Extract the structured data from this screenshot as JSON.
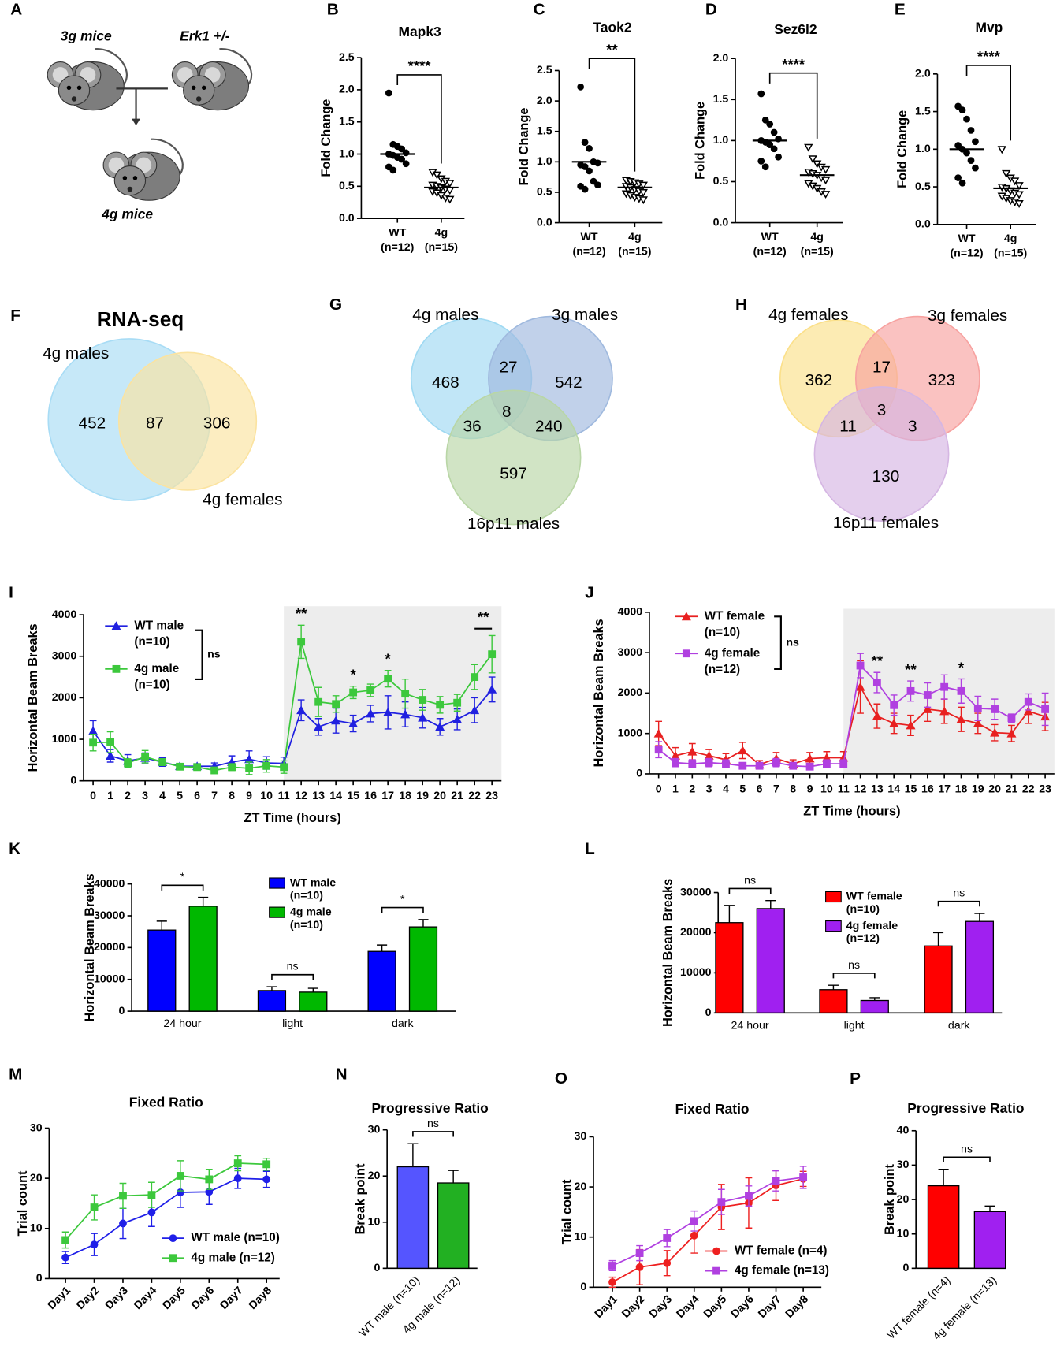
{
  "diagram": {
    "panel": "A",
    "labels": [
      "3g mice",
      "Erk1 +/-",
      "4g mice"
    ]
  },
  "chart_data": [
    {
      "panel": "B",
      "type": "dot_plot",
      "title": "Mapk3",
      "ylabel": "Fold Change",
      "categories": [
        "WT",
        "4g"
      ],
      "category_notes": [
        "(n=12)",
        "(n=15)"
      ],
      "markers": [
        "circle",
        "triangle-down-open"
      ],
      "color": "#000000",
      "points": [
        [
          1.95,
          1.15,
          1.12,
          1.08,
          1.02,
          1.0,
          0.98,
          0.95,
          0.92,
          0.85,
          0.8,
          0.75
        ],
        [
          0.72,
          0.68,
          0.62,
          0.58,
          0.55,
          0.52,
          0.5,
          0.48,
          0.46,
          0.44,
          0.42,
          0.4,
          0.36,
          0.32,
          0.3
        ]
      ],
      "means": [
        1.0,
        0.48
      ],
      "significance": "****",
      "ylim": [
        0,
        2.5
      ],
      "yticks": [
        {
          "value": 0,
          "label": "0.0"
        },
        0.5,
        {
          "value": 1,
          "label": "1.0"
        },
        1.5,
        {
          "value": 2,
          "label": "2.0"
        },
        2.5
      ]
    },
    {
      "panel": "C",
      "type": "dot_plot",
      "title": "Taok2",
      "ylabel": "Fold Change",
      "categories": [
        "WT",
        "4g"
      ],
      "category_notes": [
        "(n=12)",
        "(n=15)"
      ],
      "markers": [
        "circle",
        "triangle-down-open"
      ],
      "color": "#000000",
      "points": [
        [
          2.23,
          1.32,
          1.22,
          1.0,
          0.98,
          0.95,
          0.92,
          0.85,
          0.68,
          0.62,
          0.6,
          0.55
        ],
        [
          0.7,
          0.68,
          0.66,
          0.64,
          0.62,
          0.6,
          0.58,
          0.55,
          0.52,
          0.5,
          0.48,
          0.45,
          0.42,
          0.4,
          0.38
        ]
      ],
      "means": [
        1.0,
        0.58
      ],
      "significance": "**",
      "ylim": [
        0,
        2.5
      ],
      "yticks": [
        {
          "value": 0,
          "label": "0.0"
        },
        0.5,
        {
          "value": 1,
          "label": "1.0"
        },
        1.5,
        {
          "value": 2,
          "label": "2.0"
        },
        2.5
      ]
    },
    {
      "panel": "D",
      "type": "dot_plot",
      "title": "Sez6l2",
      "ylabel": "Fold Change",
      "categories": [
        "WT",
        "4g"
      ],
      "category_notes": [
        "(n=12)",
        "(n=15)"
      ],
      "markers": [
        "circle",
        "triangle-down-open"
      ],
      "color": "#000000",
      "points": [
        [
          1.57,
          1.25,
          1.2,
          1.1,
          1.02,
          1.0,
          0.98,
          0.95,
          0.9,
          0.8,
          0.75,
          0.68
        ],
        [
          0.92,
          0.78,
          0.72,
          0.68,
          0.65,
          0.62,
          0.6,
          0.58,
          0.55,
          0.52,
          0.48,
          0.45,
          0.42,
          0.38,
          0.35
        ]
      ],
      "means": [
        1.0,
        0.58
      ],
      "significance": "****",
      "ylim": [
        0,
        2.0
      ],
      "yticks": [
        {
          "value": 0,
          "label": "0.0"
        },
        0.5,
        {
          "value": 1,
          "label": "1.0"
        },
        1.5,
        {
          "value": 2,
          "label": "2.0"
        }
      ]
    },
    {
      "panel": "E",
      "type": "dot_plot",
      "title": "Mvp",
      "ylabel": "Fold Change",
      "categories": [
        "WT",
        "4g"
      ],
      "category_notes": [
        "(n=12)",
        "(n=15)"
      ],
      "markers": [
        "circle",
        "triangle-down-open"
      ],
      "color": "#000000",
      "points": [
        [
          1.57,
          1.52,
          1.4,
          1.25,
          1.1,
          1.05,
          1.0,
          0.95,
          0.85,
          0.75,
          0.62,
          0.55
        ],
        [
          1.0,
          0.68,
          0.62,
          0.58,
          0.52,
          0.5,
          0.48,
          0.45,
          0.42,
          0.4,
          0.38,
          0.35,
          0.32,
          0.3,
          0.28
        ]
      ],
      "means": [
        1.0,
        0.48
      ],
      "significance": "****",
      "ylim": [
        0,
        2.0
      ],
      "yticks": [
        {
          "value": 0,
          "label": "0.0"
        },
        0.5,
        {
          "value": 1,
          "label": "1.0"
        },
        1.5,
        {
          "value": 2,
          "label": "2.0"
        }
      ]
    },
    {
      "panel": "F",
      "type": "venn",
      "title": "RNA-seq",
      "sets": [
        "4g males",
        "4g females"
      ],
      "colors": [
        "#a8dcf5",
        "#fbe3a0"
      ],
      "values": [
        452,
        306,
        87
      ]
    },
    {
      "panel": "G",
      "type": "venn",
      "sets": [
        "4g males",
        "3g males",
        "16p11 males"
      ],
      "colors": [
        "#9fd9f2",
        "#9fb9de",
        "#b9d6a6"
      ],
      "values": [
        468,
        542,
        597,
        27,
        36,
        240,
        8
      ]
    },
    {
      "panel": "H",
      "type": "venn",
      "sets": [
        "4g females",
        "3g females",
        "16p11 females"
      ],
      "colors": [
        "#fbe08a",
        "#f7a2a0",
        "#d5b6e3"
      ],
      "values": [
        362,
        323,
        130,
        17,
        11,
        3,
        3
      ]
    },
    {
      "panel": "I",
      "type": "line",
      "ylabel": "Horizontal Beam Breaks",
      "xlabel": "ZT Time (hours)",
      "x": [
        0,
        1,
        2,
        3,
        4,
        5,
        6,
        7,
        8,
        9,
        10,
        11,
        12,
        13,
        14,
        15,
        16,
        17,
        18,
        19,
        20,
        21,
        22,
        23
      ],
      "xticks": [
        0,
        1,
        2,
        3,
        4,
        5,
        6,
        7,
        8,
        9,
        10,
        11,
        12,
        13,
        14,
        15,
        16,
        17,
        18,
        19,
        20,
        21,
        22,
        23
      ],
      "xlim": [
        -0.55,
        23.55
      ],
      "ylim": [
        0,
        4000
      ],
      "yticks": [
        0,
        1000,
        2000,
        3000,
        4000
      ],
      "dark_phase": [
        11,
        23.55
      ],
      "series": [
        {
          "name": "WT male",
          "note": "(n=10)",
          "color": "#2020e0",
          "marker": "triangle",
          "values": [
            1200,
            600,
            480,
            550,
            450,
            350,
            350,
            350,
            450,
            520,
            430,
            420,
            1700,
            1300,
            1450,
            1380,
            1620,
            1650,
            1600,
            1520,
            1300,
            1480,
            1700,
            2200
          ],
          "errors": [
            250,
            150,
            150,
            120,
            100,
            60,
            60,
            80,
            150,
            200,
            150,
            150,
            250,
            200,
            300,
            200,
            200,
            400,
            300,
            250,
            200,
            250,
            300,
            300
          ]
        },
        {
          "name": "4g male",
          "note": "(n=10)",
          "color": "#3cc83c",
          "marker": "square",
          "values": [
            920,
            930,
            430,
            580,
            450,
            340,
            330,
            250,
            330,
            300,
            360,
            330,
            3350,
            1900,
            1850,
            2130,
            2180,
            2460,
            2100,
            1950,
            1830,
            1880,
            2500,
            3050
          ],
          "errors": [
            200,
            250,
            100,
            150,
            80,
            50,
            50,
            50,
            80,
            150,
            150,
            150,
            400,
            350,
            200,
            150,
            150,
            200,
            350,
            250,
            200,
            200,
            300,
            450
          ]
        }
      ],
      "group_test": "ns",
      "annotations": [
        {
          "text": "**",
          "x": 12
        },
        {
          "text": "*",
          "x": 15
        },
        {
          "text": "*",
          "x": 17
        },
        {
          "text": "**",
          "x_range": [
            22,
            23
          ]
        }
      ]
    },
    {
      "panel": "J",
      "type": "line",
      "ylabel": "Horizontal Beam Breaks",
      "xlabel": "ZT Time (hours)",
      "x": [
        0,
        1,
        2,
        3,
        4,
        5,
        6,
        7,
        8,
        9,
        10,
        11,
        12,
        13,
        14,
        15,
        16,
        17,
        18,
        19,
        20,
        21,
        22,
        23
      ],
      "xticks": [
        0,
        1,
        2,
        3,
        4,
        5,
        6,
        7,
        8,
        9,
        10,
        11,
        12,
        13,
        14,
        15,
        16,
        17,
        18,
        19,
        20,
        21,
        22,
        23
      ],
      "xlim": [
        -0.55,
        23.55
      ],
      "ylim": [
        0,
        4000
      ],
      "yticks": [
        0,
        1000,
        2000,
        3000,
        4000
      ],
      "dark_phase": [
        11,
        23.55
      ],
      "series": [
        {
          "name": "WT female",
          "note": "(n=10)",
          "color": "#e82020",
          "marker": "triangle",
          "values": [
            1000,
            450,
            550,
            450,
            350,
            580,
            230,
            380,
            250,
            380,
            400,
            400,
            2150,
            1430,
            1250,
            1200,
            1600,
            1550,
            1350,
            1250,
            1020,
            1000,
            1550,
            1420
          ],
          "errors": [
            300,
            200,
            200,
            150,
            150,
            200,
            100,
            150,
            100,
            150,
            150,
            150,
            650,
            300,
            250,
            250,
            300,
            300,
            300,
            250,
            200,
            200,
            300,
            350
          ]
        },
        {
          "name": "4g female",
          "note": "(n=12)",
          "color": "#b040e0",
          "marker": "square",
          "values": [
            600,
            280,
            250,
            280,
            250,
            200,
            200,
            280,
            200,
            180,
            250,
            250,
            2680,
            2260,
            1700,
            2050,
            1950,
            2150,
            2050,
            1620,
            1600,
            1380,
            1780,
            1600
          ],
          "errors": [
            200,
            100,
            100,
            100,
            100,
            80,
            80,
            100,
            80,
            80,
            100,
            100,
            300,
            250,
            250,
            250,
            300,
            300,
            300,
            300,
            250,
            100,
            200,
            400
          ]
        }
      ],
      "group_test": "ns",
      "annotations": [
        {
          "text": "**",
          "x": 13
        },
        {
          "text": "**",
          "x": 15
        },
        {
          "text": "*",
          "x": 18
        }
      ]
    },
    {
      "panel": "K",
      "type": "bar",
      "ylabel": "Horizontal Beam Breaks",
      "categories": [
        "24 hour",
        "light",
        "dark"
      ],
      "ylim": [
        0,
        40000
      ],
      "yticks": [
        0,
        10000,
        20000,
        30000,
        40000
      ],
      "series": [
        {
          "name": "WT male",
          "note": "(n=10)",
          "color": "#0000ff",
          "values": [
            25500,
            6500,
            18800
          ],
          "errors": [
            2800,
            1200,
            2000
          ]
        },
        {
          "name": "4g male",
          "note": "(n=10)",
          "color": "#00b800",
          "values": [
            33000,
            6000,
            26500
          ],
          "errors": [
            2800,
            1200,
            2300
          ]
        }
      ],
      "comparisons": [
        "*",
        "ns",
        "*"
      ]
    },
    {
      "panel": "L",
      "type": "bar",
      "ylabel": "Horizontal Beam Breaks",
      "categories": [
        "24 hour",
        "light",
        "dark"
      ],
      "ylim": [
        0,
        30000
      ],
      "yticks": [
        0,
        10000,
        20000,
        30000
      ],
      "series": [
        {
          "name": "WT female",
          "note": "(n=10)",
          "color": "#ff0000",
          "values": [
            22500,
            5800,
            16700
          ],
          "errors": [
            4300,
            1100,
            3300
          ]
        },
        {
          "name": "4g female",
          "note": "(n=12)",
          "color": "#a020f0",
          "values": [
            26000,
            3100,
            22800
          ],
          "errors": [
            2000,
            700,
            2000
          ]
        }
      ],
      "comparisons": [
        "ns",
        "ns",
        "ns"
      ]
    },
    {
      "panel": "M",
      "type": "line",
      "title": "Fixed Ratio",
      "ylabel": "Trial count",
      "categories": [
        "Day1",
        "Day2",
        "Day3",
        "Day4",
        "Day5",
        "Day6",
        "Day7",
        "Day8"
      ],
      "ylim": [
        0,
        30
      ],
      "yticks": [
        0,
        10,
        20,
        30
      ],
      "series": [
        {
          "name": "WT male (n=10)",
          "color": "#1f1fe8",
          "marker": "circle",
          "values": [
            4.2,
            6.8,
            11,
            13.2,
            17.2,
            17.3,
            20,
            19.8
          ],
          "errors": [
            1.2,
            2.2,
            3,
            2.8,
            3,
            2.5,
            2,
            1.6
          ]
        },
        {
          "name": "4g male (n=12)",
          "color": "#3cc83c",
          "marker": "square",
          "values": [
            7.7,
            14.2,
            16.5,
            16.7,
            20.5,
            19.8,
            23,
            22.8
          ],
          "errors": [
            1.6,
            2.5,
            2.5,
            2.5,
            3,
            2,
            1.5,
            1.2
          ]
        }
      ]
    },
    {
      "panel": "N",
      "type": "bar",
      "title": "Progressive Ratio",
      "ylabel": "Break point",
      "categories": [
        "WT male (n=10)",
        "4g male (n=12)"
      ],
      "colors": [
        "#5555ff",
        "#22b022"
      ],
      "values": [
        22,
        18.5
      ],
      "errors": [
        5,
        2.7
      ],
      "ylim": [
        0,
        30
      ],
      "yticks": [
        0,
        10,
        20,
        30
      ],
      "comparison": "ns"
    },
    {
      "panel": "O",
      "type": "line",
      "title": "Fixed Ratio",
      "ylabel": "Trial count",
      "categories": [
        "Day1",
        "Day2",
        "Day3",
        "Day4",
        "Day5",
        "Day6",
        "Day7",
        "Day8"
      ],
      "ylim": [
        0,
        30
      ],
      "yticks": [
        0,
        10,
        20,
        30
      ],
      "series": [
        {
          "name": "WT female (n=4)",
          "color": "#ee2020",
          "marker": "circle",
          "values": [
            1,
            4,
            4.8,
            10.3,
            16,
            16.8,
            20.3,
            21.6
          ],
          "errors": [
            1,
            3.5,
            2.5,
            3.5,
            4.5,
            5,
            3,
            1.5
          ]
        },
        {
          "name": "4g female (n=13)",
          "color": "#b040e0",
          "marker": "square",
          "values": [
            4.3,
            6.8,
            9.8,
            13.2,
            17,
            18.2,
            21.2,
            21.9
          ],
          "errors": [
            1,
            1.5,
            1.7,
            2,
            2.5,
            2,
            2,
            2.2
          ]
        }
      ]
    },
    {
      "panel": "P",
      "type": "bar",
      "title": "Progressive Ratio",
      "ylabel": "Break point",
      "categories": [
        "WT female (n=4)",
        "4g female (n=13)"
      ],
      "colors": [
        "#ff0000",
        "#a020f0"
      ],
      "values": [
        24,
        16.5
      ],
      "errors": [
        4.8,
        1.6
      ],
      "ylim": [
        0,
        40
      ],
      "yticks": [
        0,
        10,
        20,
        30,
        40
      ],
      "comparison": "ns"
    }
  ]
}
